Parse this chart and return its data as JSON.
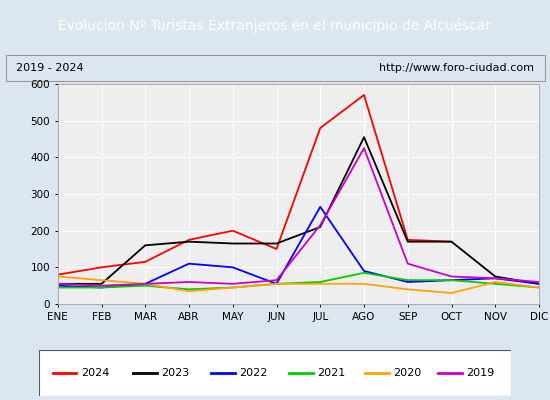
{
  "title": "Evolucion Nº Turistas Extranjeros en el municipio de Alcuéscar",
  "subtitle_left": "2019 - 2024",
  "subtitle_right": "http://www.foro-ciudad.com",
  "months": [
    "ENE",
    "FEB",
    "MAR",
    "ABR",
    "MAY",
    "JUN",
    "JUL",
    "AGO",
    "SEP",
    "OCT",
    "NOV",
    "DIC"
  ],
  "series": {
    "2024": [
      80,
      100,
      115,
      175,
      200,
      150,
      480,
      570,
      175,
      170,
      null,
      null
    ],
    "2023": [
      55,
      55,
      160,
      170,
      165,
      165,
      210,
      455,
      170,
      170,
      75,
      55
    ],
    "2022": [
      50,
      45,
      55,
      110,
      100,
      55,
      265,
      90,
      60,
      65,
      70,
      55
    ],
    "2021": [
      45,
      45,
      50,
      40,
      45,
      55,
      60,
      85,
      65,
      65,
      55,
      45
    ],
    "2020": [
      75,
      65,
      55,
      35,
      45,
      55,
      55,
      55,
      40,
      30,
      60,
      45
    ],
    "2019": [
      55,
      50,
      55,
      60,
      55,
      65,
      215,
      425,
      110,
      75,
      70,
      60
    ]
  },
  "colors": {
    "2024": "#ff0000",
    "2023": "#000000",
    "2022": "#0000ff",
    "2021": "#00cc00",
    "2020": "#ffa500",
    "2019": "#cc00cc"
  },
  "ylim": [
    0,
    600
  ],
  "yticks": [
    0,
    100,
    200,
    300,
    400,
    500,
    600
  ],
  "title_bg_color": "#4472c4",
  "title_color": "#ffffff",
  "plot_bg_color": "#eeeeee",
  "grid_color": "#ffffff",
  "outer_bg_color": "#dce6f1",
  "title_fontsize": 10,
  "subtitle_fontsize": 8,
  "tick_fontsize": 7.5,
  "legend_fontsize": 8
}
